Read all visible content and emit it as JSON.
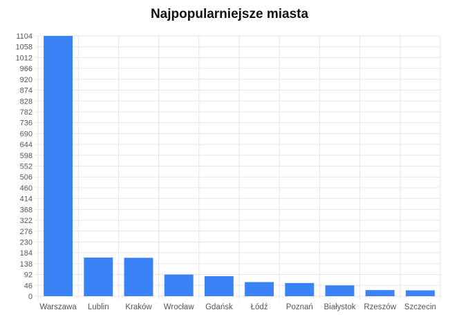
{
  "chart_data": {
    "type": "bar",
    "title": "Najpopularniejsze miasta",
    "categories": [
      "Warszawa",
      "Lublin",
      "Kraków",
      "Wrocław",
      "Gdańsk",
      "Łódź",
      "Poznań",
      "Białystok",
      "Rzeszów",
      "Szczecin"
    ],
    "values": [
      1104,
      164,
      163,
      92,
      85,
      60,
      56,
      46,
      26,
      25
    ],
    "xlabel": "",
    "ylabel": "",
    "ylim": [
      0,
      1104
    ],
    "yticks": [
      0,
      46,
      92,
      138,
      184,
      230,
      276,
      322,
      368,
      414,
      460,
      506,
      552,
      598,
      644,
      690,
      736,
      782,
      828,
      874,
      920,
      966,
      1012,
      1058,
      1104
    ],
    "grid": true,
    "legend": "none",
    "colors": {
      "bar": "#3b82f6",
      "grid": "#e5e5e5",
      "tick_label": "#555555",
      "title": "#111111"
    }
  }
}
